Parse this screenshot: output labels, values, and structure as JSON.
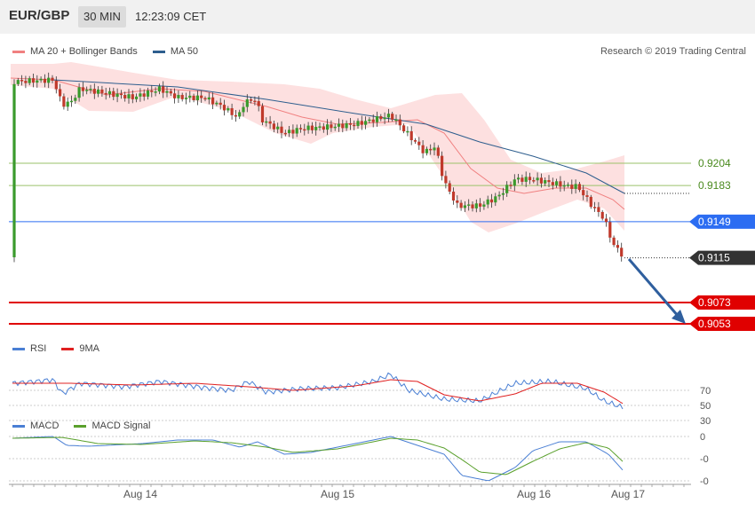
{
  "header": {
    "pair": "EUR/GBP",
    "timeframe": "30 MIN",
    "time": "12:23:09 CET"
  },
  "attribution": "Research © 2019 Trading Central",
  "legends": {
    "price": [
      {
        "label": "MA 20 + Bollinger Bands",
        "color": "#f08080"
      },
      {
        "label": "MA 50",
        "color": "#2e5e8e"
      }
    ],
    "rsi": [
      {
        "label": "RSI",
        "color": "#4a7fd4"
      },
      {
        "label": "9MA",
        "color": "#e02020"
      }
    ],
    "macd": [
      {
        "label": "MACD",
        "color": "#4a7fd4"
      },
      {
        "label": "MACD Signal",
        "color": "#5aa02c"
      }
    ]
  },
  "chart_data": {
    "type": "candlestick",
    "x_labels": [
      "Aug 14",
      "Aug 15",
      "Aug 16",
      "Aug 17"
    ],
    "levels": [
      {
        "value": 0.9204,
        "label": "0.9204",
        "kind": "resistance",
        "color": "#9ac26a"
      },
      {
        "value": 0.9183,
        "label": "0.9183",
        "kind": "resistance",
        "color": "#9ac26a"
      },
      {
        "value": 0.9149,
        "label": "0.9149",
        "kind": "pivot",
        "color": "#2c6df2"
      },
      {
        "value": 0.9115,
        "label": "0.9115",
        "kind": "last-price",
        "color": "#333333"
      },
      {
        "value": 0.9073,
        "label": "0.9073",
        "kind": "support",
        "color": "#e00000"
      },
      {
        "value": 0.9053,
        "label": "0.9053",
        "kind": "support",
        "color": "#e00000"
      }
    ],
    "price_range": [
      0.9053,
      0.9204
    ],
    "projection": {
      "direction": "down",
      "target": 0.9053,
      "color": "#2f5f9e"
    },
    "rsi_axis": [
      "70",
      "50",
      "30"
    ],
    "macd_axis": [
      "0",
      "-0",
      "-0"
    ]
  }
}
